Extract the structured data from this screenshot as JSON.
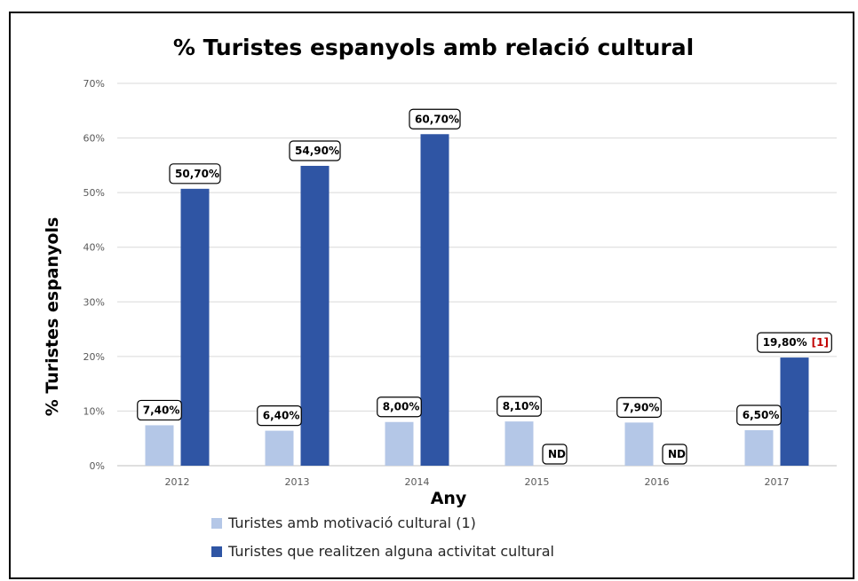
{
  "chart_data": {
    "type": "bar",
    "title": "% Turistes espanyols amb relació cultural",
    "xlabel": "Any",
    "ylabel": "% Turistes espanyols",
    "categories": [
      "2012",
      "2013",
      "2014",
      "2015",
      "2016",
      "2017"
    ],
    "ylim": [
      0,
      70
    ],
    "yticks": [
      "0%",
      "10%",
      "20%",
      "30%",
      "40%",
      "50%",
      "60%",
      "70%"
    ],
    "grid": true,
    "legend_position": "bottom-left",
    "series": [
      {
        "name": "Turistes amb motivació cultural (1)",
        "color": "#b4c7e7",
        "values": [
          7.4,
          6.4,
          8.0,
          8.1,
          7.9,
          6.5
        ],
        "labels": [
          "7,40%",
          "6,40%",
          "8,00%",
          "8,10%",
          "7,90%",
          "6,50%"
        ],
        "notes": [
          "",
          "",
          "",
          "",
          "",
          ""
        ]
      },
      {
        "name": "Turistes que realitzen alguna activitat cultural",
        "color": "#2f55a4",
        "values": [
          50.7,
          54.9,
          60.7,
          null,
          null,
          19.8
        ],
        "labels": [
          "50,70%",
          "54,90%",
          "60,70%",
          "ND",
          "ND",
          "19,80%"
        ],
        "notes": [
          "",
          "",
          "",
          "",
          "",
          "[1]"
        ]
      }
    ]
  }
}
